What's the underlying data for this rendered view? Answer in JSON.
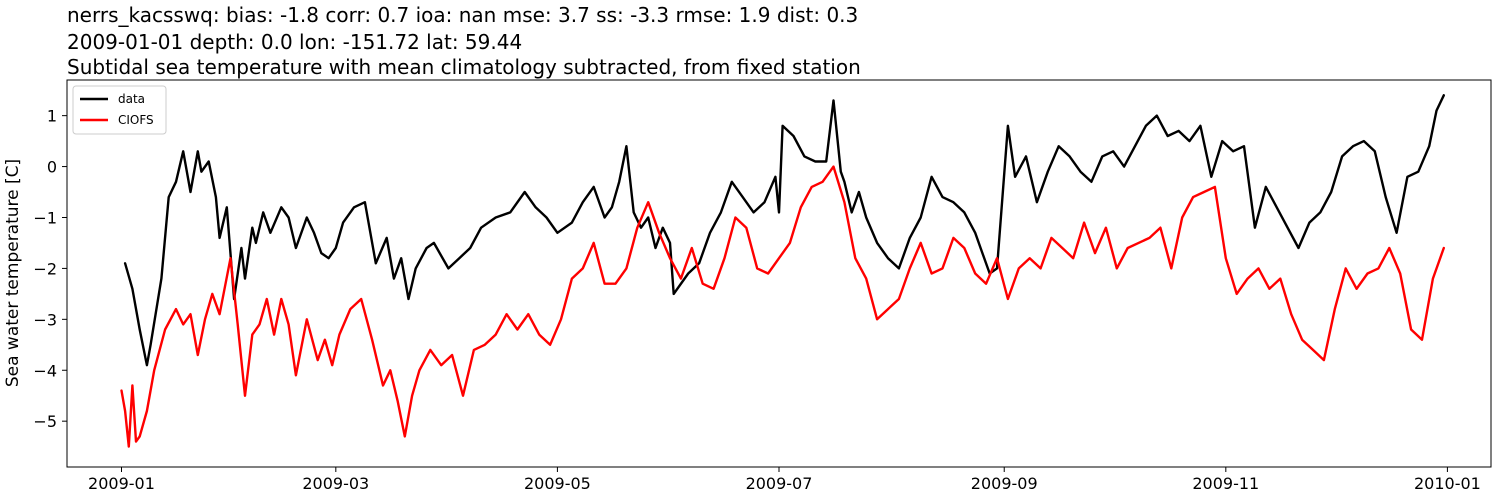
{
  "header": {
    "line1": "nerrs_kacsswq: bias: -1.8  corr: 0.7  ioa: nan  mse: 3.7  ss: -3.3  rmse: 1.9  dist: 0.3",
    "line2": "2009-01-01 depth: 0.0 lon: -151.72 lat: 59.44",
    "line3": "Subtidal sea temperature with mean climatology subtracted, from fixed station"
  },
  "chart_data": {
    "type": "line",
    "title": "Subtidal sea temperature with mean climatology subtracted, from fixed station",
    "xlabel": "",
    "ylabel": "Sea water temperature [C]",
    "xlim": [
      "2008-12-17",
      "2010-01-13"
    ],
    "ylim": [
      -5.9,
      1.7
    ],
    "x_ticks": [
      "2009-01",
      "2009-03",
      "2009-05",
      "2009-07",
      "2009-09",
      "2009-11",
      "2010-01"
    ],
    "y_ticks": [
      -5,
      -4,
      -3,
      -2,
      -1,
      0,
      1
    ],
    "y_tick_labels": [
      "−5",
      "−4",
      "−3",
      "−2",
      "−1",
      "0",
      "1"
    ],
    "legend": {
      "location": "upper left",
      "entries": [
        "data",
        "CIOFS"
      ]
    },
    "series": [
      {
        "name": "data",
        "color": "#000000",
        "x": [
          "2009-01-02",
          "2009-01-04",
          "2009-01-06",
          "2009-01-08",
          "2009-01-09",
          "2009-01-12",
          "2009-01-14",
          "2009-01-16",
          "2009-01-18",
          "2009-01-20",
          "2009-01-22",
          "2009-01-23",
          "2009-01-25",
          "2009-01-27",
          "2009-01-28",
          "2009-01-30",
          "2009-02-01",
          "2009-02-03",
          "2009-02-04",
          "2009-02-06",
          "2009-02-07",
          "2009-02-09",
          "2009-02-11",
          "2009-02-14",
          "2009-02-16",
          "2009-02-18",
          "2009-02-21",
          "2009-02-23",
          "2009-02-25",
          "2009-02-27",
          "2009-03-01",
          "2009-03-03",
          "2009-03-06",
          "2009-03-09",
          "2009-03-12",
          "2009-03-15",
          "2009-03-17",
          "2009-03-19",
          "2009-03-21",
          "2009-03-23",
          "2009-03-26",
          "2009-03-28",
          "2009-04-01",
          "2009-04-04",
          "2009-04-07",
          "2009-04-10",
          "2009-04-14",
          "2009-04-18",
          "2009-04-22",
          "2009-04-25",
          "2009-04-28",
          "2009-05-01",
          "2009-05-05",
          "2009-05-08",
          "2009-05-11",
          "2009-05-14",
          "2009-05-16",
          "2009-05-18",
          "2009-05-20",
          "2009-05-22",
          "2009-05-24",
          "2009-05-26",
          "2009-05-28",
          "2009-05-30",
          "2009-06-01",
          "2009-06-02",
          "2009-06-06",
          "2009-06-09",
          "2009-06-12",
          "2009-06-15",
          "2009-06-18",
          "2009-06-21",
          "2009-06-24",
          "2009-06-27",
          "2009-06-30",
          "2009-07-01",
          "2009-07-02",
          "2009-07-05",
          "2009-07-08",
          "2009-07-11",
          "2009-07-14",
          "2009-07-16",
          "2009-07-18",
          "2009-07-19",
          "2009-07-21",
          "2009-07-23",
          "2009-07-25",
          "2009-07-28",
          "2009-07-31",
          "2009-08-03",
          "2009-08-06",
          "2009-08-09",
          "2009-08-12",
          "2009-08-15",
          "2009-08-18",
          "2009-08-21",
          "2009-08-24",
          "2009-08-26",
          "2009-08-28",
          "2009-08-30",
          "2009-09-02",
          "2009-09-04",
          "2009-09-07",
          "2009-09-10",
          "2009-09-13",
          "2009-09-16",
          "2009-09-19",
          "2009-09-22",
          "2009-09-25",
          "2009-09-28",
          "2009-10-01",
          "2009-10-04",
          "2009-10-07",
          "2009-10-10",
          "2009-10-13",
          "2009-10-16",
          "2009-10-19",
          "2009-10-22",
          "2009-10-25",
          "2009-10-28",
          "2009-10-31",
          "2009-11-03",
          "2009-11-06",
          "2009-11-09",
          "2009-11-12",
          "2009-11-15",
          "2009-11-18",
          "2009-11-21",
          "2009-11-24",
          "2009-11-27",
          "2009-11-30",
          "2009-12-03",
          "2009-12-06",
          "2009-12-09",
          "2009-12-12",
          "2009-12-15",
          "2009-12-18",
          "2009-12-21",
          "2009-12-24",
          "2009-12-27",
          "2009-12-29",
          "2009-12-31"
        ],
        "y": [
          -1.9,
          -2.4,
          -3.2,
          -3.9,
          -3.5,
          -2.2,
          -0.6,
          -0.3,
          0.3,
          -0.5,
          0.3,
          -0.1,
          0.1,
          -0.6,
          -1.4,
          -0.8,
          -2.6,
          -1.6,
          -2.2,
          -1.2,
          -1.5,
          -0.9,
          -1.3,
          -0.8,
          -1.0,
          -1.6,
          -1.0,
          -1.3,
          -1.7,
          -1.8,
          -1.6,
          -1.1,
          -0.8,
          -0.7,
          -1.9,
          -1.4,
          -2.2,
          -1.8,
          -2.6,
          -2.0,
          -1.6,
          -1.5,
          -2.0,
          -1.8,
          -1.6,
          -1.2,
          -1.0,
          -0.9,
          -0.5,
          -0.8,
          -1.0,
          -1.3,
          -1.1,
          -0.7,
          -0.4,
          -1.0,
          -0.8,
          -0.3,
          0.4,
          -0.9,
          -1.2,
          -1.0,
          -1.6,
          -1.2,
          -1.5,
          -2.5,
          -2.1,
          -1.9,
          -1.3,
          -0.9,
          -0.3,
          -0.6,
          -0.9,
          -0.7,
          -0.2,
          -0.9,
          0.8,
          0.6,
          0.2,
          0.1,
          0.1,
          1.3,
          -0.1,
          -0.3,
          -0.9,
          -0.5,
          -1.0,
          -1.5,
          -1.8,
          -2.0,
          -1.4,
          -1.0,
          -0.2,
          -0.6,
          -0.7,
          -0.9,
          -1.3,
          -1.7,
          -2.1,
          -2.0,
          0.8,
          -0.2,
          0.2,
          -0.7,
          -0.1,
          0.4,
          0.2,
          -0.1,
          -0.3,
          0.2,
          0.3,
          0.0,
          0.4,
          0.8,
          1.0,
          0.6,
          0.7,
          0.5,
          0.8,
          -0.2,
          0.5,
          0.3,
          0.4,
          -1.2,
          -0.4,
          -0.8,
          -1.2,
          -1.6,
          -1.1,
          -0.9,
          -0.5,
          0.2,
          0.4,
          0.5,
          0.3,
          -0.6,
          -1.3,
          -0.2,
          -0.1,
          0.4,
          1.1,
          1.4
        ]
      },
      {
        "name": "CIOFS",
        "color": "#ff0000",
        "x": [
          "2009-01-01",
          "2009-01-02",
          "2009-01-03",
          "2009-01-04",
          "2009-01-05",
          "2009-01-06",
          "2009-01-08",
          "2009-01-10",
          "2009-01-13",
          "2009-01-16",
          "2009-01-18",
          "2009-01-20",
          "2009-01-22",
          "2009-01-24",
          "2009-01-26",
          "2009-01-28",
          "2009-01-31",
          "2009-02-02",
          "2009-02-04",
          "2009-02-06",
          "2009-02-08",
          "2009-02-10",
          "2009-02-12",
          "2009-02-14",
          "2009-02-16",
          "2009-02-18",
          "2009-02-21",
          "2009-02-24",
          "2009-02-26",
          "2009-02-28",
          "2009-03-02",
          "2009-03-05",
          "2009-03-08",
          "2009-03-11",
          "2009-03-14",
          "2009-03-16",
          "2009-03-18",
          "2009-03-20",
          "2009-03-22",
          "2009-03-24",
          "2009-03-27",
          "2009-03-30",
          "2009-04-02",
          "2009-04-05",
          "2009-04-08",
          "2009-04-11",
          "2009-04-14",
          "2009-04-17",
          "2009-04-20",
          "2009-04-23",
          "2009-04-26",
          "2009-04-29",
          "2009-05-02",
          "2009-05-05",
          "2009-05-08",
          "2009-05-11",
          "2009-05-14",
          "2009-05-17",
          "2009-05-20",
          "2009-05-23",
          "2009-05-26",
          "2009-05-29",
          "2009-06-01",
          "2009-06-04",
          "2009-06-07",
          "2009-06-10",
          "2009-06-13",
          "2009-06-16",
          "2009-06-19",
          "2009-06-22",
          "2009-06-25",
          "2009-06-28",
          "2009-07-01",
          "2009-07-04",
          "2009-07-07",
          "2009-07-10",
          "2009-07-13",
          "2009-07-16",
          "2009-07-19",
          "2009-07-22",
          "2009-07-25",
          "2009-07-28",
          "2009-07-31",
          "2009-08-03",
          "2009-08-06",
          "2009-08-09",
          "2009-08-12",
          "2009-08-15",
          "2009-08-18",
          "2009-08-21",
          "2009-08-24",
          "2009-08-27",
          "2009-08-30",
          "2009-09-02",
          "2009-09-05",
          "2009-09-08",
          "2009-09-11",
          "2009-09-14",
          "2009-09-17",
          "2009-09-20",
          "2009-09-23",
          "2009-09-26",
          "2009-09-29",
          "2009-10-02",
          "2009-10-05",
          "2009-10-08",
          "2009-10-11",
          "2009-10-14",
          "2009-10-17",
          "2009-10-20",
          "2009-10-23",
          "2009-10-26",
          "2009-10-29",
          "2009-11-01",
          "2009-11-04",
          "2009-11-07",
          "2009-11-10",
          "2009-11-13",
          "2009-11-16",
          "2009-11-19",
          "2009-11-22",
          "2009-11-25",
          "2009-11-28",
          "2009-12-01",
          "2009-12-04",
          "2009-12-07",
          "2009-12-10",
          "2009-12-13",
          "2009-12-16",
          "2009-12-19",
          "2009-12-22",
          "2009-12-25",
          "2009-12-28",
          "2009-12-31"
        ],
        "y": [
          -4.4,
          -4.8,
          -5.5,
          -4.3,
          -5.4,
          -5.3,
          -4.8,
          -4.0,
          -3.2,
          -2.8,
          -3.1,
          -2.9,
          -3.7,
          -3.0,
          -2.5,
          -2.9,
          -1.8,
          -3.1,
          -4.5,
          -3.3,
          -3.1,
          -2.6,
          -3.3,
          -2.6,
          -3.1,
          -4.1,
          -3.0,
          -3.8,
          -3.4,
          -3.9,
          -3.3,
          -2.8,
          -2.6,
          -3.4,
          -4.3,
          -4.0,
          -4.6,
          -5.3,
          -4.5,
          -4.0,
          -3.6,
          -3.9,
          -3.7,
          -4.5,
          -3.6,
          -3.5,
          -3.3,
          -2.9,
          -3.2,
          -2.9,
          -3.3,
          -3.5,
          -3.0,
          -2.2,
          -2.0,
          -1.5,
          -2.3,
          -2.3,
          -2.0,
          -1.2,
          -0.7,
          -1.3,
          -1.8,
          -2.2,
          -1.6,
          -2.3,
          -2.4,
          -1.8,
          -1.0,
          -1.2,
          -2.0,
          -2.1,
          -1.8,
          -1.5,
          -0.8,
          -0.4,
          -0.3,
          0.0,
          -0.7,
          -1.8,
          -2.2,
          -3.0,
          -2.8,
          -2.6,
          -2.0,
          -1.5,
          -2.1,
          -2.0,
          -1.4,
          -1.6,
          -2.1,
          -2.3,
          -1.8,
          -2.6,
          -2.0,
          -1.8,
          -2.0,
          -1.4,
          -1.6,
          -1.8,
          -1.1,
          -1.7,
          -1.2,
          -2.0,
          -1.6,
          -1.5,
          -1.4,
          -1.2,
          -2.0,
          -1.0,
          -0.6,
          -0.5,
          -0.4,
          -1.8,
          -2.5,
          -2.2,
          -2.0,
          -2.4,
          -2.2,
          -2.9,
          -3.4,
          -3.6,
          -3.8,
          -2.8,
          -2.0,
          -2.4,
          -2.1,
          -2.0,
          -1.6,
          -2.1,
          -3.2,
          -3.4,
          -2.2,
          -1.6
        ]
      }
    ]
  }
}
